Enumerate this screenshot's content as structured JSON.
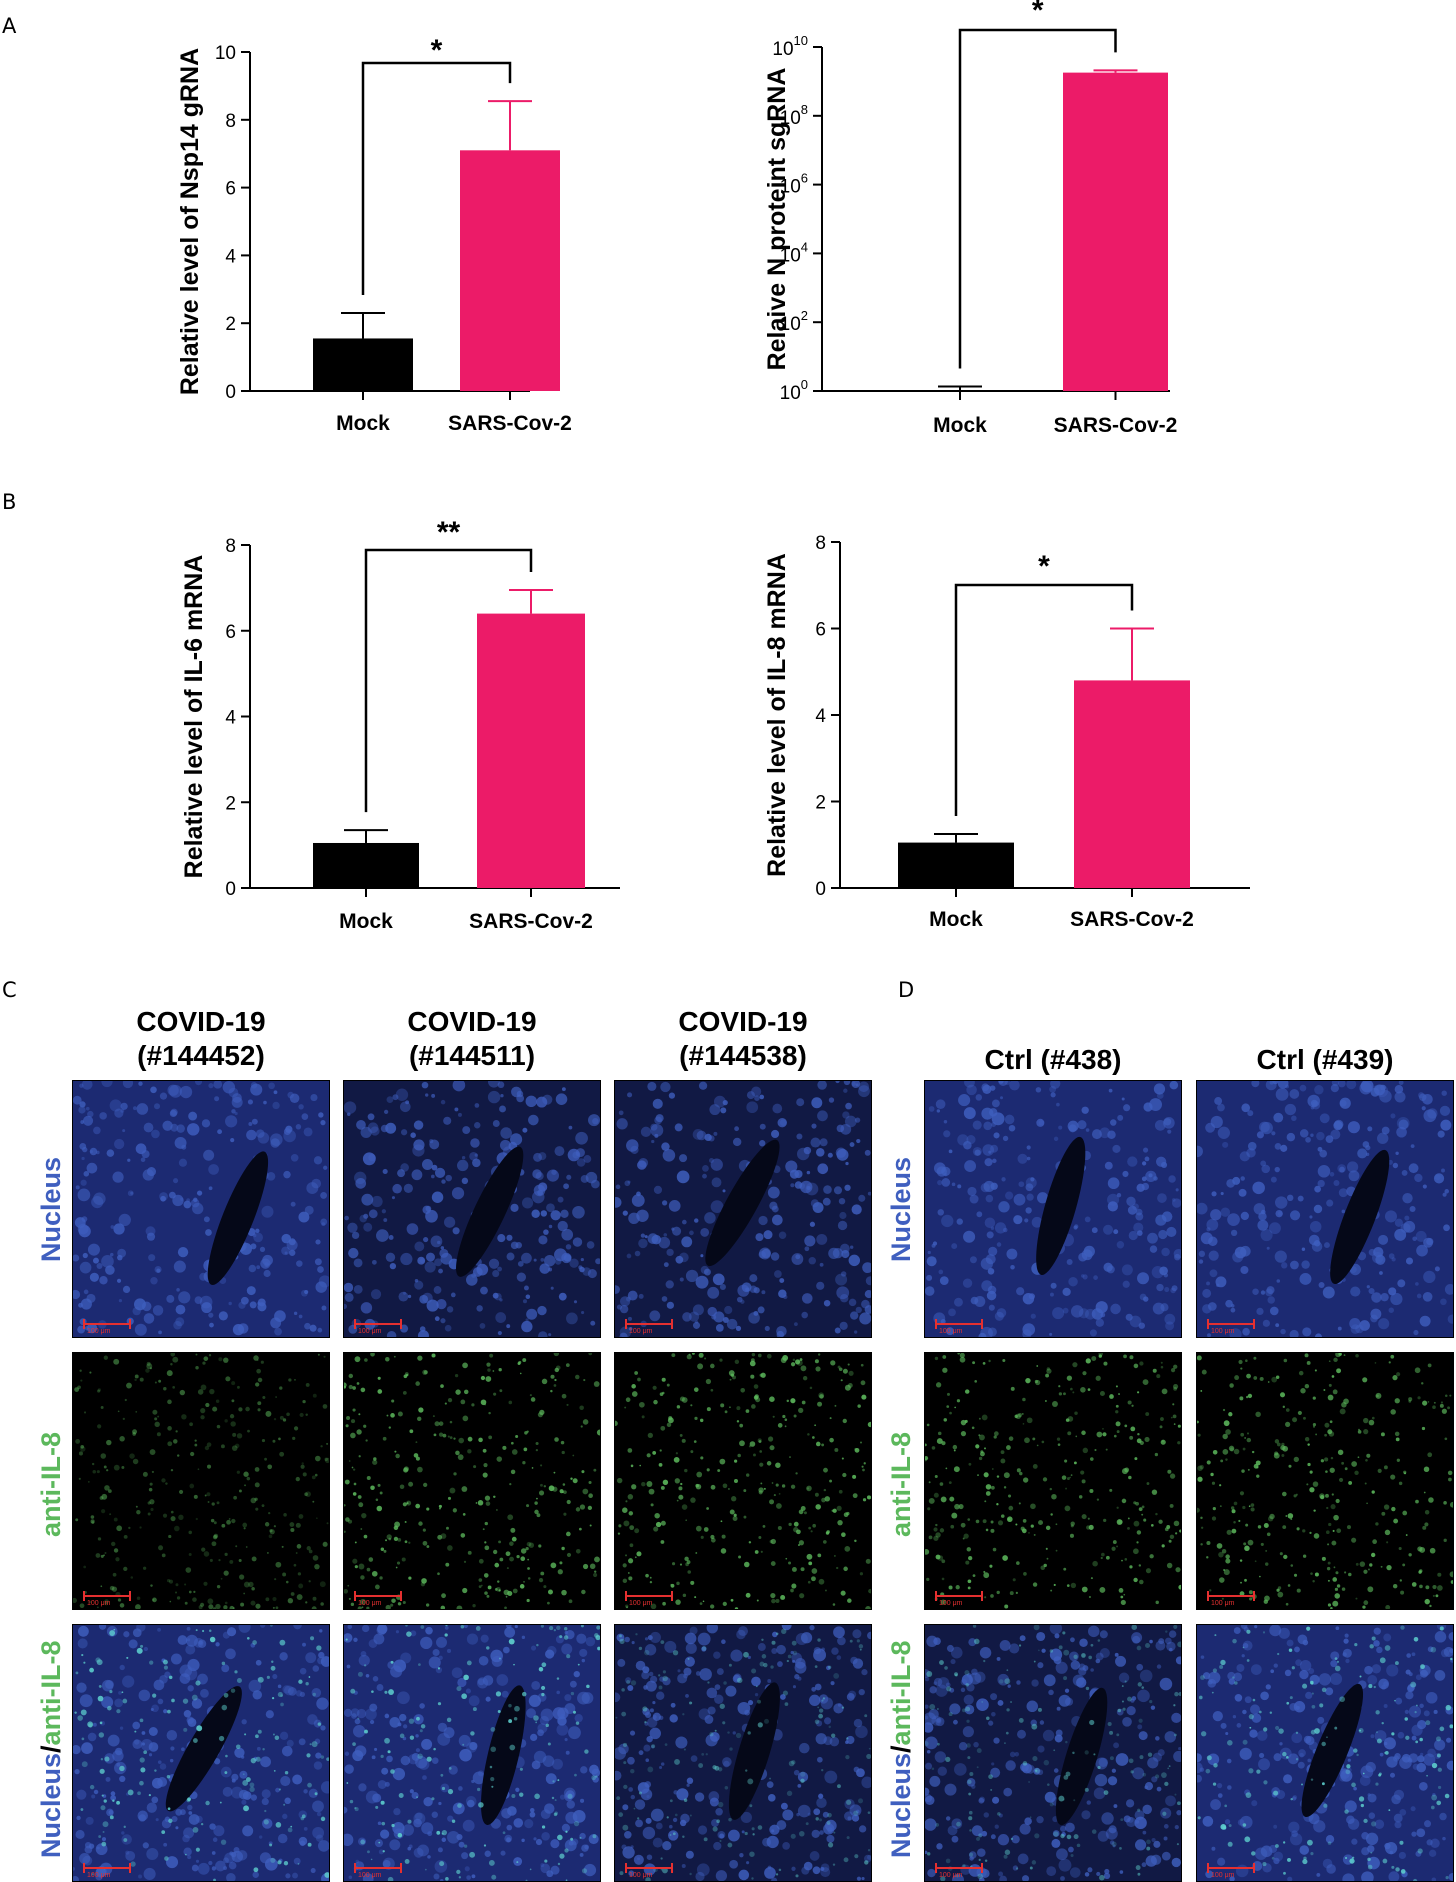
{
  "panels": {
    "A": "A",
    "B": "B",
    "C": "C",
    "D": "D"
  },
  "chart_data": [
    {
      "type": "bar",
      "categories": [
        "Mock",
        "SARS-Cov-2"
      ],
      "values": [
        1.55,
        7.1
      ],
      "errors": [
        0.75,
        1.45
      ],
      "ylabel": "Relative level of Nsp14 gRNA",
      "ylim": [
        0,
        10
      ],
      "yticks": [
        "0",
        "2",
        "4",
        "6",
        "8",
        "10"
      ],
      "significance": "*",
      "colors": [
        "#000000",
        "#ec1b68"
      ]
    },
    {
      "type": "bar",
      "scale": "log",
      "categories": [
        "Mock",
        "SARS-Cov-2"
      ],
      "values": [
        1,
        1800000000.0
      ],
      "errors": [
        0.35,
        300000000.0
      ],
      "ylabel": "Relaive N proteint sgRNA",
      "ylim": [
        1,
        10000000000.0
      ],
      "yticks": [
        "10^0",
        "10^2",
        "10^4",
        "10^6",
        "10^8",
        "10^10"
      ],
      "significance": "*",
      "colors": [
        "#000000",
        "#ec1b68"
      ]
    },
    {
      "type": "bar",
      "categories": [
        "Mock",
        "SARS-Cov-2"
      ],
      "values": [
        1.05,
        6.4
      ],
      "errors": [
        0.3,
        0.55
      ],
      "ylabel": "Relative level of IL-6 mRNA",
      "ylim": [
        0,
        8
      ],
      "yticks": [
        "0",
        "2",
        "4",
        "6",
        "8"
      ],
      "significance": "**",
      "colors": [
        "#000000",
        "#ec1b68"
      ]
    },
    {
      "type": "bar",
      "categories": [
        "Mock",
        "SARS-Cov-2"
      ],
      "values": [
        1.05,
        4.8
      ],
      "errors": [
        0.2,
        1.2
      ],
      "ylabel": "Relative level of IL-8 mRNA",
      "ylim": [
        0,
        8
      ],
      "yticks": [
        "0",
        "2",
        "4",
        "6",
        "8"
      ],
      "significance": "*",
      "colors": [
        "#000000",
        "#ec1b68"
      ]
    }
  ],
  "images": {
    "covid_titles": [
      [
        "COVID-19",
        "(#144452)"
      ],
      [
        "COVID-19",
        "(#144511)"
      ],
      [
        "COVID-19",
        "(#144538)"
      ]
    ],
    "ctrl_titles": [
      "Ctrl (#438)",
      "Ctrl (#439)"
    ],
    "row_labels": {
      "nucleus": "Nucleus",
      "il8": "anti-IL-8",
      "merge_a": "Nucleus",
      "merge_sep": "/",
      "merge_b": "anti-IL-8"
    },
    "scale_text": "100 μm",
    "colors": {
      "nucleus": "#3f5fbf",
      "il8": "#5cb85c",
      "background": "#000000"
    }
  }
}
